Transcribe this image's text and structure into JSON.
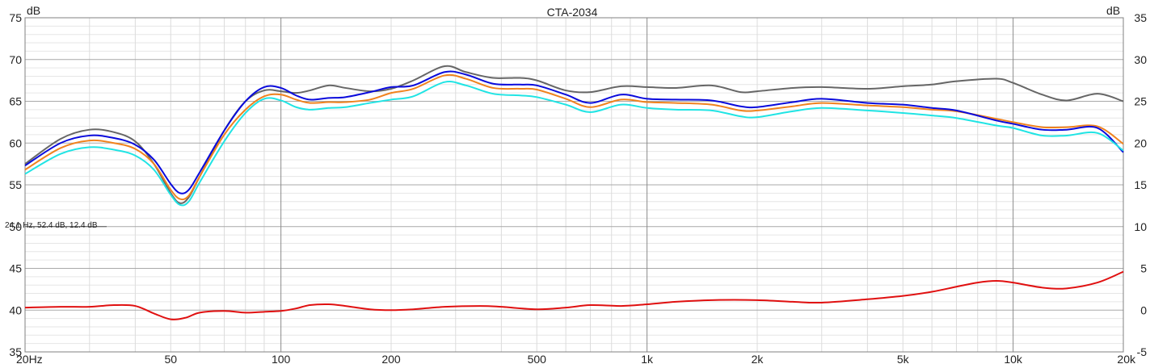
{
  "chart_data": {
    "type": "line",
    "title": "CTA-2034",
    "x_scale": "log",
    "xlim": [
      20,
      20000
    ],
    "ylim_left": [
      35,
      75
    ],
    "ylim_right": [
      -5,
      35
    ],
    "left_unit": "dB",
    "right_unit": "dB",
    "x_ticks": [
      {
        "value": 20,
        "label": "20Hz"
      },
      {
        "value": 50,
        "label": "50"
      },
      {
        "value": 100,
        "label": "100"
      },
      {
        "value": 200,
        "label": "200"
      },
      {
        "value": 500,
        "label": "500"
      },
      {
        "value": 1000,
        "label": "1k"
      },
      {
        "value": 2000,
        "label": "2k"
      },
      {
        "value": 5000,
        "label": "5k"
      },
      {
        "value": 10000,
        "label": "10k"
      },
      {
        "value": 20000,
        "label": "20k"
      }
    ],
    "y_ticks_left": [
      "75",
      "70",
      "65",
      "60",
      "55",
      "50",
      "45",
      "40",
      "35"
    ],
    "y_ticks_right": [
      "35",
      "30",
      "25",
      "20",
      "15",
      "10",
      "5",
      "0",
      "-5"
    ],
    "cursor_readout": {
      "label": "24.1 Hz, 52.4 dB, 12.4 dB",
      "y": 50
    },
    "grid": true,
    "legend": "none",
    "series": [
      {
        "color": "#666666",
        "axis": "left",
        "points": [
          [
            20,
            57.5
          ],
          [
            25,
            60.5
          ],
          [
            30,
            61.6
          ],
          [
            35,
            61.3
          ],
          [
            40,
            60.2
          ],
          [
            45,
            57.5
          ],
          [
            50,
            54
          ],
          [
            53,
            52.8
          ],
          [
            56,
            53.5
          ],
          [
            60,
            56
          ],
          [
            70,
            61.5
          ],
          [
            80,
            65
          ],
          [
            90,
            66.3
          ],
          [
            100,
            66.2
          ],
          [
            110,
            66
          ],
          [
            120,
            66.3
          ],
          [
            135,
            66.9
          ],
          [
            150,
            66.6
          ],
          [
            175,
            66.2
          ],
          [
            200,
            66.5
          ],
          [
            230,
            67.5
          ],
          [
            280,
            69.2
          ],
          [
            320,
            68.5
          ],
          [
            380,
            67.8
          ],
          [
            450,
            67.8
          ],
          [
            500,
            67.5
          ],
          [
            600,
            66.3
          ],
          [
            700,
            66.1
          ],
          [
            850,
            66.8
          ],
          [
            1000,
            66.7
          ],
          [
            1200,
            66.6
          ],
          [
            1500,
            66.9
          ],
          [
            1800,
            66.1
          ],
          [
            2000,
            66.2
          ],
          [
            2500,
            66.6
          ],
          [
            3000,
            66.7
          ],
          [
            4000,
            66.5
          ],
          [
            5000,
            66.8
          ],
          [
            6000,
            67
          ],
          [
            7000,
            67.4
          ],
          [
            9000,
            67.7
          ],
          [
            10000,
            67.2
          ],
          [
            12000,
            65.8
          ],
          [
            14000,
            65.1
          ],
          [
            17000,
            65.9
          ],
          [
            20000,
            65
          ]
        ]
      },
      {
        "color": "#f0821e",
        "axis": "left",
        "points": [
          [
            20,
            56.8
          ],
          [
            25,
            59.4
          ],
          [
            30,
            60.3
          ],
          [
            35,
            60
          ],
          [
            40,
            59.3
          ],
          [
            45,
            57.5
          ],
          [
            50,
            54.4
          ],
          [
            53,
            53.3
          ],
          [
            56,
            53.7
          ],
          [
            60,
            56
          ],
          [
            70,
            61
          ],
          [
            80,
            64
          ],
          [
            90,
            65.6
          ],
          [
            100,
            65.8
          ],
          [
            110,
            65.2
          ],
          [
            120,
            64.8
          ],
          [
            135,
            64.9
          ],
          [
            150,
            64.9
          ],
          [
            175,
            65.2
          ],
          [
            200,
            66
          ],
          [
            230,
            66.5
          ],
          [
            280,
            68.1
          ],
          [
            320,
            67.7
          ],
          [
            380,
            66.6
          ],
          [
            450,
            66.5
          ],
          [
            500,
            66.4
          ],
          [
            600,
            65.3
          ],
          [
            700,
            64.3
          ],
          [
            850,
            65.2
          ],
          [
            1000,
            64.9
          ],
          [
            1200,
            64.8
          ],
          [
            1500,
            64.6
          ],
          [
            1800,
            63.9
          ],
          [
            2000,
            63.9
          ],
          [
            2500,
            64.4
          ],
          [
            3000,
            64.8
          ],
          [
            4000,
            64.5
          ],
          [
            5000,
            64.3
          ],
          [
            6000,
            64
          ],
          [
            7000,
            63.8
          ],
          [
            9000,
            62.9
          ],
          [
            10000,
            62.5
          ],
          [
            12000,
            61.9
          ],
          [
            14000,
            61.9
          ],
          [
            17000,
            62
          ],
          [
            20000,
            59.9
          ]
        ]
      },
      {
        "color": "#0a0adc",
        "axis": "left",
        "points": [
          [
            20,
            57.3
          ],
          [
            25,
            60
          ],
          [
            30,
            60.9
          ],
          [
            35,
            60.6
          ],
          [
            40,
            59.8
          ],
          [
            45,
            58
          ],
          [
            50,
            55.1
          ],
          [
            53,
            54
          ],
          [
            56,
            54.4
          ],
          [
            60,
            56.5
          ],
          [
            70,
            61.5
          ],
          [
            80,
            65
          ],
          [
            90,
            66.7
          ],
          [
            100,
            66.6
          ],
          [
            110,
            65.7
          ],
          [
            120,
            65.2
          ],
          [
            135,
            65.4
          ],
          [
            150,
            65.5
          ],
          [
            175,
            66.1
          ],
          [
            200,
            66.7
          ],
          [
            230,
            66.9
          ],
          [
            280,
            68.5
          ],
          [
            320,
            68.2
          ],
          [
            380,
            67.1
          ],
          [
            450,
            67
          ],
          [
            500,
            66.9
          ],
          [
            600,
            65.8
          ],
          [
            700,
            64.8
          ],
          [
            850,
            65.8
          ],
          [
            1000,
            65.3
          ],
          [
            1200,
            65.2
          ],
          [
            1500,
            65.1
          ],
          [
            1800,
            64.4
          ],
          [
            2000,
            64.3
          ],
          [
            2500,
            64.9
          ],
          [
            3000,
            65.3
          ],
          [
            4000,
            64.8
          ],
          [
            5000,
            64.6
          ],
          [
            6000,
            64.2
          ],
          [
            7000,
            63.9
          ],
          [
            9000,
            62.7
          ],
          [
            10000,
            62.3
          ],
          [
            12000,
            61.6
          ],
          [
            14000,
            61.6
          ],
          [
            17000,
            61.8
          ],
          [
            20000,
            58.9
          ]
        ]
      },
      {
        "color": "#20e4e4",
        "axis": "left",
        "points": [
          [
            20,
            56.3
          ],
          [
            25,
            58.7
          ],
          [
            30,
            59.5
          ],
          [
            35,
            59.2
          ],
          [
            40,
            58.5
          ],
          [
            45,
            56.8
          ],
          [
            50,
            53.8
          ],
          [
            53,
            52.6
          ],
          [
            56,
            53
          ],
          [
            60,
            55.3
          ],
          [
            70,
            60.2
          ],
          [
            80,
            63.6
          ],
          [
            90,
            65.3
          ],
          [
            100,
            65.1
          ],
          [
            110,
            64.3
          ],
          [
            120,
            64
          ],
          [
            135,
            64.2
          ],
          [
            150,
            64.3
          ],
          [
            175,
            64.8
          ],
          [
            200,
            65.2
          ],
          [
            230,
            65.6
          ],
          [
            280,
            67.3
          ],
          [
            320,
            66.9
          ],
          [
            380,
            65.9
          ],
          [
            450,
            65.7
          ],
          [
            500,
            65.5
          ],
          [
            600,
            64.6
          ],
          [
            700,
            63.7
          ],
          [
            850,
            64.6
          ],
          [
            1000,
            64.2
          ],
          [
            1200,
            64
          ],
          [
            1500,
            63.9
          ],
          [
            1800,
            63.2
          ],
          [
            2000,
            63.1
          ],
          [
            2500,
            63.8
          ],
          [
            3000,
            64.2
          ],
          [
            4000,
            63.9
          ],
          [
            5000,
            63.6
          ],
          [
            6000,
            63.3
          ],
          [
            7000,
            63
          ],
          [
            9000,
            62.1
          ],
          [
            10000,
            61.8
          ],
          [
            12000,
            60.9
          ],
          [
            14000,
            60.9
          ],
          [
            17000,
            61.2
          ],
          [
            20000,
            59.1
          ]
        ]
      },
      {
        "color": "#e01010",
        "axis": "right",
        "points": [
          [
            20,
            0.3
          ],
          [
            25,
            0.4
          ],
          [
            30,
            0.4
          ],
          [
            35,
            0.6
          ],
          [
            40,
            0.5
          ],
          [
            45,
            -0.4
          ],
          [
            50,
            -1.1
          ],
          [
            55,
            -0.9
          ],
          [
            60,
            -0.3
          ],
          [
            70,
            -0.1
          ],
          [
            80,
            -0.3
          ],
          [
            90,
            -0.2
          ],
          [
            100,
            -0.1
          ],
          [
            110,
            0.2
          ],
          [
            120,
            0.6
          ],
          [
            135,
            0.7
          ],
          [
            150,
            0.5
          ],
          [
            175,
            0.1
          ],
          [
            200,
            0
          ],
          [
            230,
            0.1
          ],
          [
            280,
            0.4
          ],
          [
            350,
            0.5
          ],
          [
            400,
            0.4
          ],
          [
            500,
            0.1
          ],
          [
            600,
            0.3
          ],
          [
            700,
            0.6
          ],
          [
            850,
            0.5
          ],
          [
            1000,
            0.7
          ],
          [
            1200,
            1
          ],
          [
            1500,
            1.2
          ],
          [
            2000,
            1.2
          ],
          [
            2500,
            1
          ],
          [
            3000,
            0.9
          ],
          [
            4000,
            1.3
          ],
          [
            5000,
            1.7
          ],
          [
            6000,
            2.2
          ],
          [
            7000,
            2.8
          ],
          [
            8000,
            3.3
          ],
          [
            9000,
            3.5
          ],
          [
            10000,
            3.3
          ],
          [
            12000,
            2.7
          ],
          [
            14000,
            2.6
          ],
          [
            17000,
            3.3
          ],
          [
            20000,
            4.6
          ]
        ]
      }
    ]
  }
}
